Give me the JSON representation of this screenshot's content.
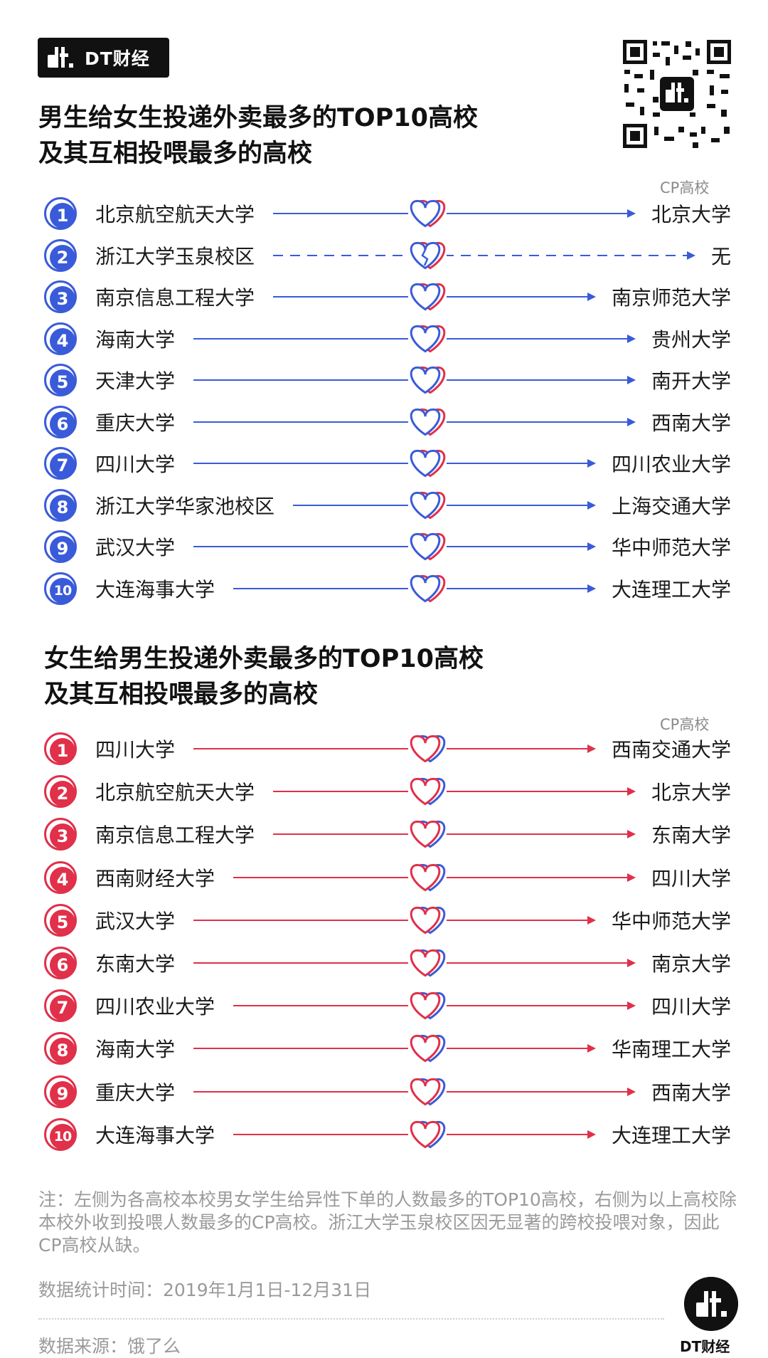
{
  "brand": {
    "name": "DT财经",
    "footer_name": "DT财经"
  },
  "colors": {
    "blue": "#3a5bd9",
    "red": "#e0304a"
  },
  "section_boys": {
    "title_line1": "男生给女生投递外卖最多的TOP10高校",
    "title_line2": "及其互相投喂最多的高校",
    "cp_label": "CP高校",
    "rows": [
      {
        "rank": "1",
        "source": "北京航空航天大学",
        "target": "北京大学",
        "dashed": false
      },
      {
        "rank": "2",
        "source": "浙江大学玉泉校区",
        "target": "无",
        "dashed": true
      },
      {
        "rank": "3",
        "source": "南京信息工程大学",
        "target": "南京师范大学",
        "dashed": false
      },
      {
        "rank": "4",
        "source": "海南大学",
        "target": "贵州大学",
        "dashed": false
      },
      {
        "rank": "5",
        "source": "天津大学",
        "target": "南开大学",
        "dashed": false
      },
      {
        "rank": "6",
        "source": "重庆大学",
        "target": "西南大学",
        "dashed": false
      },
      {
        "rank": "7",
        "source": "四川大学",
        "target": "四川农业大学",
        "dashed": false
      },
      {
        "rank": "8",
        "source": "浙江大学华家池校区",
        "target": "上海交通大学",
        "dashed": false
      },
      {
        "rank": "9",
        "source": "武汉大学",
        "target": "华中师范大学",
        "dashed": false
      },
      {
        "rank": "10",
        "source": "大连海事大学",
        "target": "大连理工大学",
        "dashed": false
      }
    ]
  },
  "section_girls": {
    "title_line1": "女生给男生投递外卖最多的TOP10高校",
    "title_line2": "及其互相投喂最多的高校",
    "cp_label": "CP高校",
    "rows": [
      {
        "rank": "1",
        "source": "四川大学",
        "target": "西南交通大学",
        "dashed": false
      },
      {
        "rank": "2",
        "source": "北京航空航天大学",
        "target": "北京大学",
        "dashed": false
      },
      {
        "rank": "3",
        "source": "南京信息工程大学",
        "target": "东南大学",
        "dashed": false
      },
      {
        "rank": "4",
        "source": "西南财经大学",
        "target": "四川大学",
        "dashed": false
      },
      {
        "rank": "5",
        "source": "武汉大学",
        "target": "华中师范大学",
        "dashed": false
      },
      {
        "rank": "6",
        "source": "东南大学",
        "target": "南京大学",
        "dashed": false
      },
      {
        "rank": "7",
        "source": "四川农业大学",
        "target": "四川大学",
        "dashed": false
      },
      {
        "rank": "8",
        "source": "海南大学",
        "target": "华南理工大学",
        "dashed": false
      },
      {
        "rank": "9",
        "source": "重庆大学",
        "target": "西南大学",
        "dashed": false
      },
      {
        "rank": "10",
        "source": "大连海事大学",
        "target": "大连理工大学",
        "dashed": false
      }
    ]
  },
  "footer": {
    "note": "注：左侧为各高校本校男女学生给异性下单的人数最多的TOP10高校，右侧为以上高校除本校外收到投喂人数最多的CP高校。浙江大学玉泉校区因无显著的跨校投喂对象，因此CP高校从缺。",
    "period": "数据统计时间：2019年1月1日-12月31日",
    "source": "数据来源：饿了么"
  }
}
